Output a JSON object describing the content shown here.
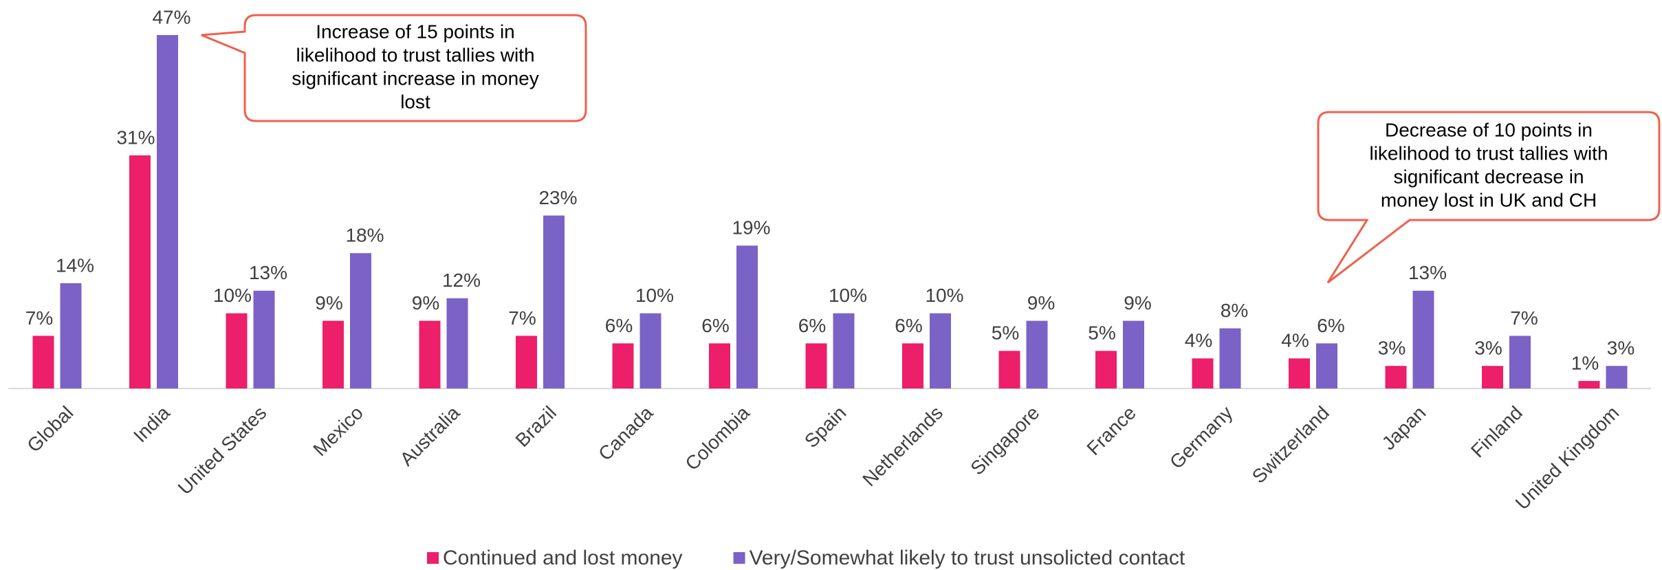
{
  "chart_data": {
    "type": "bar",
    "categories": [
      "Global",
      "India",
      "United States",
      "Mexico",
      "Australia",
      "Brazil",
      "Canada",
      "Colombia",
      "Spain",
      "Netherlands",
      "Singapore",
      "France",
      "Germany",
      "Switzerland",
      "Japan",
      "Finland",
      "United Kingdom"
    ],
    "series": [
      {
        "name": "Continued and lost money",
        "color": "#ed1e6a",
        "values": [
          7,
          31,
          10,
          9,
          9,
          7,
          6,
          6,
          6,
          6,
          5,
          5,
          4,
          4,
          3,
          3,
          1
        ],
        "value_labels": [
          "7%",
          "31%",
          "10%",
          "9%",
          "9%",
          "7%",
          "6%",
          "6%",
          "6%",
          "6%",
          "5%",
          "5%",
          "4%",
          "4%",
          "3%",
          "3%",
          "1%"
        ]
      },
      {
        "name": "Very/Somewhat likely to trust unsolicted contact",
        "color": "#7b62c6",
        "values": [
          14,
          47,
          13,
          18,
          12,
          23,
          10,
          19,
          10,
          10,
          9,
          9,
          8,
          6,
          13,
          7,
          3
        ],
        "value_labels": [
          "14%",
          "47%",
          "13%",
          "18%",
          "12%",
          "23%",
          "10%",
          "19%",
          "10%",
          "10%",
          "9%",
          "9%",
          "8%",
          "6%",
          "13%",
          "7%",
          "3%"
        ]
      }
    ],
    "legend": "bottom",
    "annotations": [
      {
        "lines": [
          "Increase of 15 points in",
          "likelihood to trust tallies with",
          "significant increase in money",
          "lost"
        ]
      },
      {
        "lines": [
          "Decrease of 10 points in",
          "likelihood to trust tallies with",
          "significant decrease in",
          "money lost in UK and CH"
        ]
      }
    ]
  }
}
